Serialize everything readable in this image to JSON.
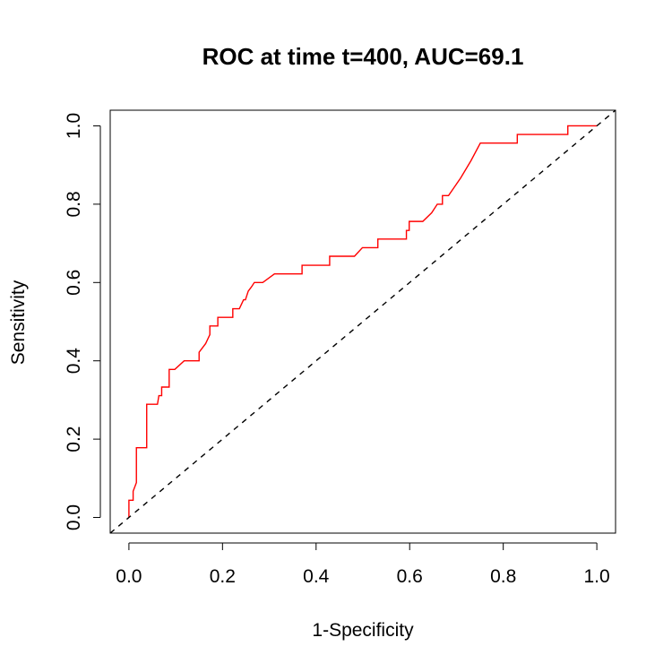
{
  "chart_data": {
    "type": "line",
    "title": "ROC at time t=400, AUC=69.1",
    "xlabel": "1-Specificity",
    "ylabel": "Sensitivity",
    "xlim": [
      -0.04,
      1.04
    ],
    "ylim": [
      -0.04,
      1.04
    ],
    "xticks": [
      0.0,
      0.2,
      0.4,
      0.6,
      0.8,
      1.0
    ],
    "xtick_labels": [
      "0.0",
      "0.2",
      "0.4",
      "0.6",
      "0.8",
      "1.0"
    ],
    "yticks": [
      0.0,
      0.2,
      0.4,
      0.6,
      0.8,
      1.0
    ],
    "ytick_labels": [
      "0.0",
      "0.2",
      "0.4",
      "0.6",
      "0.8",
      "1.0"
    ],
    "grid": false,
    "series": [
      {
        "style": "solid",
        "color": "#ff0000",
        "x": [
          0.0,
          0.0,
          0.0,
          0.009,
          0.009,
          0.016,
          0.016,
          0.016,
          0.038,
          0.038,
          0.038,
          0.05,
          0.061,
          0.064,
          0.07,
          0.07,
          0.086,
          0.086,
          0.098,
          0.118,
          0.118,
          0.15,
          0.15,
          0.164,
          0.173,
          0.173,
          0.19,
          0.19,
          0.222,
          0.222,
          0.236,
          0.245,
          0.249,
          0.255,
          0.262,
          0.268,
          0.286,
          0.311,
          0.311,
          0.37,
          0.37,
          0.429,
          0.429,
          0.482,
          0.499,
          0.499,
          0.532,
          0.532,
          0.593,
          0.593,
          0.599,
          0.599,
          0.628,
          0.647,
          0.659,
          0.67,
          0.67,
          0.683,
          0.709,
          0.731,
          0.731,
          0.751,
          0.751,
          0.83,
          0.83,
          0.938,
          0.938,
          1.0
        ],
        "y": [
          0.0,
          0.022,
          0.044,
          0.044,
          0.067,
          0.089,
          0.133,
          0.178,
          0.178,
          0.222,
          0.289,
          0.289,
          0.289,
          0.311,
          0.311,
          0.333,
          0.333,
          0.378,
          0.378,
          0.4,
          0.4,
          0.4,
          0.422,
          0.444,
          0.467,
          0.489,
          0.489,
          0.511,
          0.511,
          0.533,
          0.533,
          0.556,
          0.556,
          0.578,
          0.589,
          0.6,
          0.6,
          0.622,
          0.622,
          0.622,
          0.644,
          0.644,
          0.667,
          0.667,
          0.689,
          0.689,
          0.689,
          0.711,
          0.711,
          0.733,
          0.733,
          0.756,
          0.756,
          0.778,
          0.8,
          0.8,
          0.822,
          0.822,
          0.867,
          0.911,
          0.911,
          0.956,
          0.956,
          0.956,
          0.978,
          0.978,
          1.0,
          1.0
        ]
      },
      {
        "style": "dashed",
        "color": "#000000",
        "x": [
          -0.04,
          1.04
        ],
        "y": [
          -0.04,
          1.04
        ]
      }
    ]
  }
}
